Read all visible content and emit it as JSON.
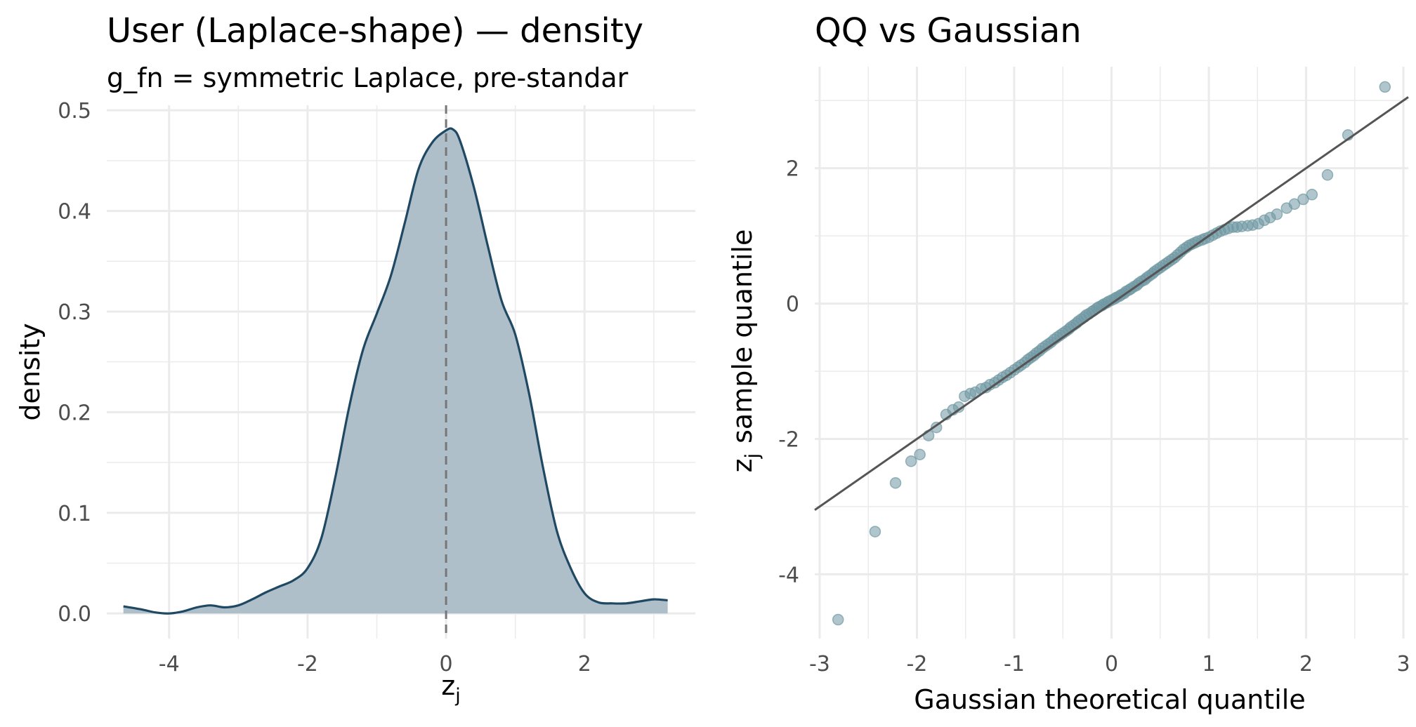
{
  "chart_data": [
    {
      "type": "area",
      "title": "User (Laplace-shape) — density",
      "subtitle": "g_fn = symmetric Laplace, pre-standar",
      "xlabel": "z",
      "xlabel_sub": "j",
      "ylabel": "density",
      "xlim": [
        -4.9,
        3.6
      ],
      "ylim": [
        -0.025,
        0.505
      ],
      "xticks": [
        -4,
        -2,
        0,
        2
      ],
      "xtick_labels": [
        "-4",
        "-2",
        "0",
        "2"
      ],
      "yticks": [
        0.0,
        0.1,
        0.2,
        0.3,
        0.4,
        0.5
      ],
      "ytick_labels": [
        "0.0",
        "0.1",
        "0.2",
        "0.3",
        "0.4",
        "0.5"
      ],
      "grid": true,
      "reference_line": {
        "x": 0,
        "style": "dashed"
      },
      "colors": {
        "line": "#1f4863",
        "fill": "#afbfca",
        "reference": "#777777",
        "grid": "#ebebeb"
      },
      "x": [
        -4.66,
        -4.4,
        -4.2,
        -4.0,
        -3.8,
        -3.6,
        -3.4,
        -3.2,
        -3.0,
        -2.8,
        -2.6,
        -2.4,
        -2.2,
        -2.0,
        -1.8,
        -1.6,
        -1.4,
        -1.2,
        -1.0,
        -0.8,
        -0.6,
        -0.4,
        -0.2,
        0.0,
        0.1,
        0.2,
        0.4,
        0.6,
        0.8,
        1.0,
        1.2,
        1.4,
        1.6,
        1.8,
        2.0,
        2.2,
        2.4,
        2.6,
        2.8,
        3.0,
        3.2
      ],
      "y": [
        0.007,
        0.004,
        0.001,
        0.0,
        0.002,
        0.006,
        0.008,
        0.006,
        0.008,
        0.014,
        0.021,
        0.027,
        0.033,
        0.045,
        0.075,
        0.135,
        0.205,
        0.262,
        0.298,
        0.335,
        0.387,
        0.441,
        0.468,
        0.48,
        0.481,
        0.47,
        0.424,
        0.366,
        0.311,
        0.277,
        0.218,
        0.145,
        0.082,
        0.045,
        0.02,
        0.011,
        0.01,
        0.01,
        0.012,
        0.014,
        0.013
      ]
    },
    {
      "type": "scatter",
      "title": "QQ vs Gaussian",
      "xlabel": "Gaussian theoretical quantile",
      "ylabel": "sample quantile",
      "ylabel_prefix": "z",
      "ylabel_sub": "j",
      "xlim": [
        -3.05,
        3.05
      ],
      "ylim": [
        -4.95,
        3.5
      ],
      "xticks": [
        -3,
        -2,
        -1,
        0,
        1,
        2,
        3
      ],
      "xtick_labels": [
        "-3",
        "-2",
        "-1",
        "0",
        "1",
        "2",
        "3"
      ],
      "yticks": [
        -4,
        -2,
        0,
        2
      ],
      "ytick_labels": [
        "-4",
        "-2",
        "0",
        "2"
      ],
      "grid": true,
      "reference_line": {
        "intercept": 0,
        "slope": 1.0
      },
      "colors": {
        "points": "#6f98a3",
        "line": "#555555",
        "grid": "#ebebeb"
      },
      "points": [
        [
          -2.81,
          -4.67
        ],
        [
          -2.43,
          -3.37
        ],
        [
          -2.22,
          -2.65
        ],
        [
          -2.06,
          -2.33
        ],
        [
          -1.97,
          -2.23
        ],
        [
          -1.88,
          -1.95
        ],
        [
          -1.8,
          -1.83
        ],
        [
          -1.7,
          -1.64
        ],
        [
          -1.63,
          -1.57
        ],
        [
          -1.57,
          -1.53
        ],
        [
          -1.51,
          -1.37
        ],
        [
          -1.45,
          -1.33
        ],
        [
          -1.4,
          -1.31
        ],
        [
          -1.34,
          -1.26
        ],
        [
          -1.29,
          -1.24
        ],
        [
          -1.25,
          -1.2
        ],
        [
          -1.2,
          -1.17
        ],
        [
          -1.16,
          -1.13
        ],
        [
          -1.12,
          -1.09
        ],
        [
          -1.08,
          -1.06
        ],
        [
          -1.04,
          -1.02
        ],
        [
          -1.0,
          -0.98
        ],
        [
          -0.96,
          -0.94
        ],
        [
          -0.93,
          -0.91
        ],
        [
          -0.89,
          -0.87
        ],
        [
          -0.86,
          -0.83
        ],
        [
          -0.83,
          -0.8
        ],
        [
          -0.8,
          -0.77
        ],
        [
          -0.77,
          -0.73
        ],
        [
          -0.74,
          -0.7
        ],
        [
          -0.71,
          -0.66
        ],
        [
          -0.68,
          -0.63
        ],
        [
          -0.65,
          -0.6
        ],
        [
          -0.62,
          -0.57
        ],
        [
          -0.59,
          -0.53
        ],
        [
          -0.56,
          -0.5
        ],
        [
          -0.53,
          -0.47
        ],
        [
          -0.5,
          -0.44
        ],
        [
          -0.47,
          -0.41
        ],
        [
          -0.44,
          -0.38
        ],
        [
          -0.42,
          -0.35
        ],
        [
          -0.39,
          -0.32
        ],
        [
          -0.36,
          -0.29
        ],
        [
          -0.34,
          -0.26
        ],
        [
          -0.31,
          -0.23
        ],
        [
          -0.28,
          -0.2
        ],
        [
          -0.26,
          -0.17
        ],
        [
          -0.23,
          -0.15
        ],
        [
          -0.2,
          -0.12
        ],
        [
          -0.18,
          -0.1
        ],
        [
          -0.15,
          -0.07
        ],
        [
          -0.13,
          -0.05
        ],
        [
          -0.1,
          -0.03
        ],
        [
          -0.08,
          -0.01
        ],
        [
          -0.05,
          0.01
        ],
        [
          -0.03,
          0.03
        ],
        [
          0.0,
          0.05
        ],
        [
          0.03,
          0.07
        ],
        [
          0.05,
          0.09
        ],
        [
          0.08,
          0.11
        ],
        [
          0.1,
          0.13
        ],
        [
          0.13,
          0.15
        ],
        [
          0.15,
          0.18
        ],
        [
          0.18,
          0.2
        ],
        [
          0.2,
          0.22
        ],
        [
          0.23,
          0.25
        ],
        [
          0.26,
          0.27
        ],
        [
          0.28,
          0.3
        ],
        [
          0.31,
          0.33
        ],
        [
          0.34,
          0.35
        ],
        [
          0.36,
          0.38
        ],
        [
          0.39,
          0.41
        ],
        [
          0.42,
          0.44
        ],
        [
          0.44,
          0.47
        ],
        [
          0.47,
          0.5
        ],
        [
          0.5,
          0.53
        ],
        [
          0.53,
          0.56
        ],
        [
          0.56,
          0.59
        ],
        [
          0.59,
          0.62
        ],
        [
          0.62,
          0.65
        ],
        [
          0.65,
          0.68
        ],
        [
          0.68,
          0.72
        ],
        [
          0.71,
          0.76
        ],
        [
          0.74,
          0.8
        ],
        [
          0.77,
          0.83
        ],
        [
          0.8,
          0.86
        ],
        [
          0.83,
          0.88
        ],
        [
          0.86,
          0.9
        ],
        [
          0.89,
          0.92
        ],
        [
          0.93,
          0.94
        ],
        [
          0.96,
          0.96
        ],
        [
          1.0,
          0.98
        ],
        [
          1.04,
          1.01
        ],
        [
          1.08,
          1.04
        ],
        [
          1.12,
          1.07
        ],
        [
          1.16,
          1.09
        ],
        [
          1.2,
          1.11
        ],
        [
          1.25,
          1.13
        ],
        [
          1.29,
          1.13
        ],
        [
          1.34,
          1.14
        ],
        [
          1.4,
          1.15
        ],
        [
          1.45,
          1.16
        ],
        [
          1.51,
          1.18
        ],
        [
          1.57,
          1.23
        ],
        [
          1.63,
          1.27
        ],
        [
          1.7,
          1.32
        ],
        [
          1.8,
          1.41
        ],
        [
          1.88,
          1.47
        ],
        [
          1.97,
          1.54
        ],
        [
          2.06,
          1.61
        ],
        [
          2.22,
          1.9
        ],
        [
          2.43,
          2.49
        ],
        [
          2.81,
          3.2
        ]
      ]
    }
  ]
}
